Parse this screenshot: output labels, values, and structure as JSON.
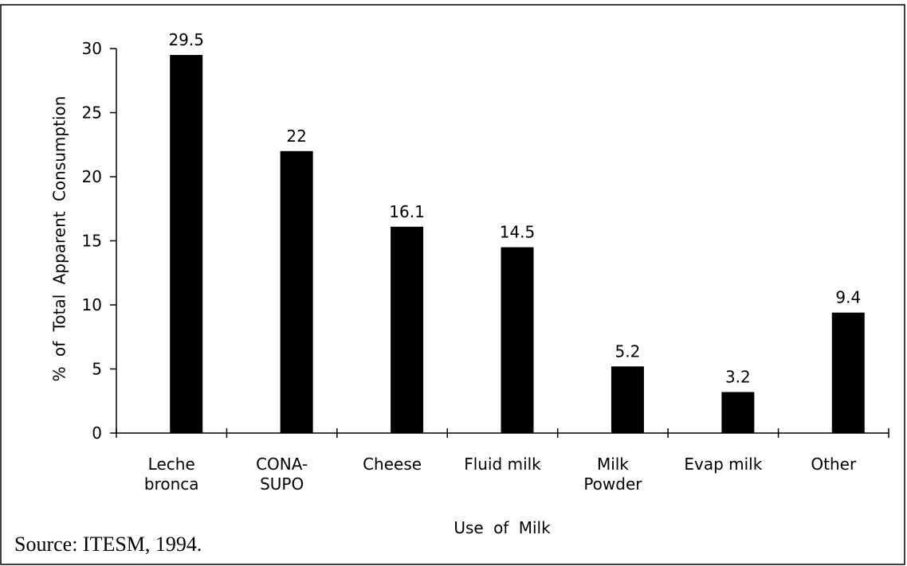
{
  "chart_data": {
    "type": "bar",
    "categories": [
      "Leche\nbronca",
      "CONA-\nSUPO",
      "Cheese",
      "Fluid milk",
      "Milk\nPowder",
      "Evap milk",
      "Other"
    ],
    "values": [
      29.5,
      22,
      16.1,
      14.5,
      5.2,
      3.2,
      9.4
    ],
    "color": "#000000",
    "ylim": [
      0,
      30
    ],
    "yticks": [
      0,
      5,
      10,
      15,
      20,
      25,
      30
    ],
    "x_label": "Use of Milk",
    "y_label": "% of Total Apparent Consumption",
    "source": "Source:  ITESM, 1994.",
    "grid": false
  }
}
